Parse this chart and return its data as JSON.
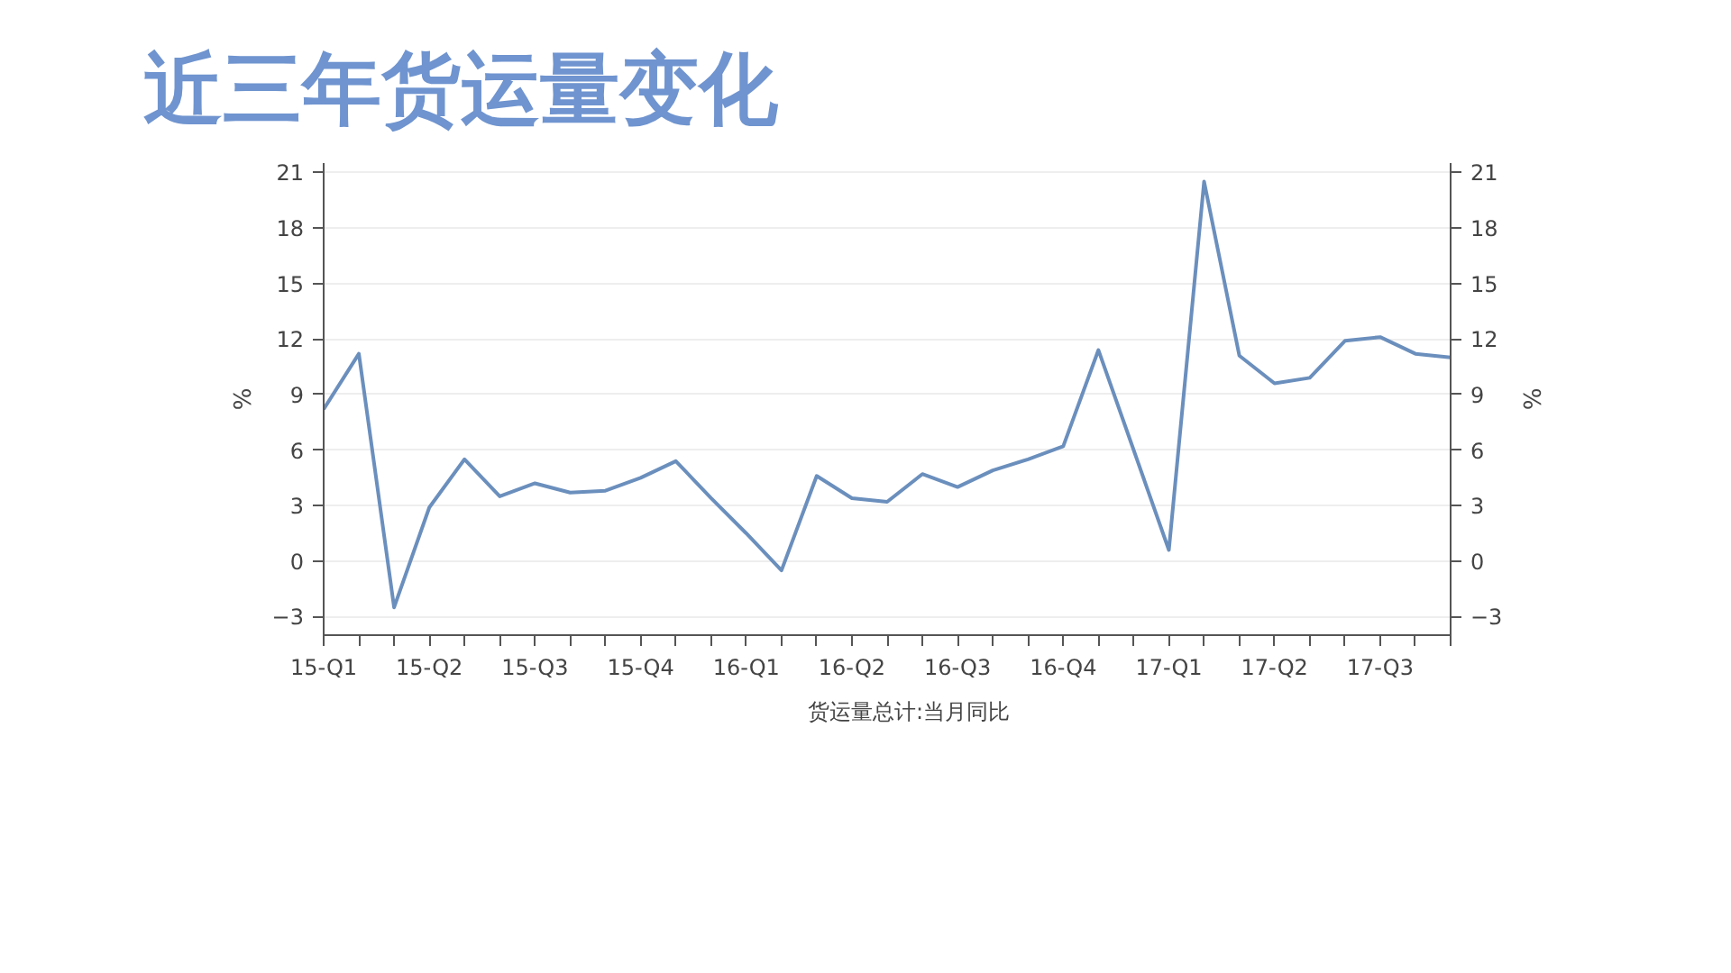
{
  "chart_data": {
    "type": "line",
    "title": "近三年货运量变化",
    "ylabel": "%",
    "y2label": "%",
    "categories": [
      "15-Q1",
      null,
      null,
      "15-Q2",
      null,
      null,
      "15-Q3",
      null,
      null,
      "15-Q4",
      null,
      null,
      "16-Q1",
      null,
      null,
      "16-Q2",
      null,
      null,
      "16-Q3",
      null,
      null,
      "16-Q4",
      null,
      null,
      "17-Q1",
      null,
      null,
      "17-Q2",
      null,
      null,
      "17-Q3",
      null,
      null
    ],
    "series": [
      {
        "name": "货运量总计:当月同比",
        "color": "#6b8fbd",
        "values": [
          8.2,
          11.2,
          -2.5,
          2.9,
          5.5,
          3.5,
          4.2,
          3.7,
          3.8,
          4.5,
          5.4,
          3.4,
          1.5,
          -0.5,
          4.6,
          3.4,
          3.2,
          4.7,
          4.0,
          4.9,
          5.5,
          6.2,
          11.4,
          6.0,
          0.6,
          20.5,
          11.1,
          9.6,
          9.9,
          11.9,
          12.1,
          11.2,
          11.0
        ]
      }
    ],
    "ylim": [
      -4,
      21.5
    ],
    "yticks": [
      -3,
      0,
      3,
      6,
      9,
      12,
      15,
      18,
      21
    ],
    "y2lim": [
      -4,
      21.5
    ],
    "y2ticks": [
      -3,
      0,
      3,
      6,
      9,
      12,
      15,
      18,
      21
    ],
    "grid": "y",
    "legend": "bottom",
    "line_style": "solid"
  }
}
